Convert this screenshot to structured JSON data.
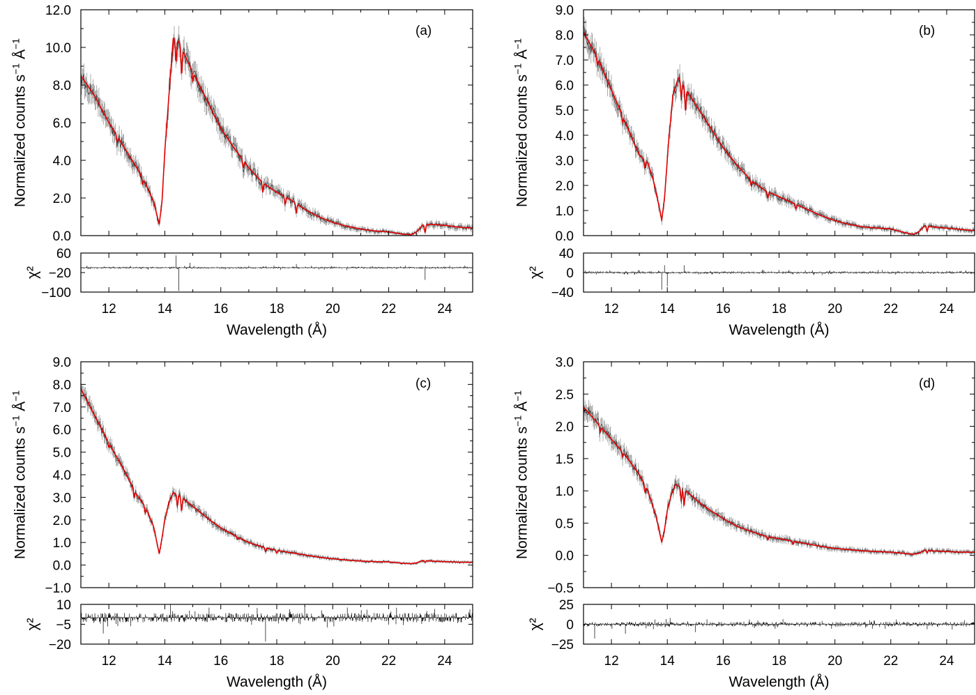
{
  "chart_data": [
    {
      "type": "line",
      "panel_label": "(a)",
      "ylabel": "Normalized counts s⁻¹ Å⁻¹",
      "ylabel_parts": {
        "main": "Normalized counts s",
        "exp1": "−1",
        "unit": "Å",
        "exp2": "−1"
      },
      "xlabel": "Wavelength (Å)",
      "xlim": [
        11,
        25
      ],
      "xticks": [
        12,
        14,
        16,
        18,
        20,
        22,
        24
      ],
      "ylim": [
        0,
        12
      ],
      "yticks": [
        "0.0",
        "2.0",
        "4.0",
        "6.0",
        "8.0",
        "10.0",
        "12.0"
      ],
      "resid_ylabel": "χ²",
      "resid_ylim": [
        -100,
        60
      ],
      "resid_yticks": [
        "60",
        "−20",
        "−100"
      ],
      "resid_ytick_values": [
        60,
        -20,
        -100
      ],
      "resid_zero": 0,
      "model": {
        "name": "model",
        "color": "#e00000",
        "x": [
          11.0,
          11.5,
          12.0,
          12.5,
          13.0,
          13.3,
          13.6,
          13.8,
          13.9,
          14.0,
          14.15,
          14.3,
          14.5,
          14.8,
          15.2,
          15.6,
          16.0,
          16.5,
          17.0,
          17.5,
          18.0,
          18.5,
          19.0,
          19.5,
          20.0,
          20.5,
          21.0,
          21.5,
          22.0,
          22.5,
          22.8,
          23.0,
          23.2,
          23.5,
          24.0,
          24.5,
          25.0
        ],
        "y": [
          8.5,
          7.4,
          6.0,
          4.8,
          3.6,
          2.8,
          1.8,
          0.6,
          1.8,
          4.5,
          7.5,
          10.5,
          10.3,
          9.3,
          8.1,
          6.9,
          5.7,
          4.6,
          3.6,
          2.8,
          2.3,
          1.9,
          1.4,
          1.0,
          0.7,
          0.5,
          0.35,
          0.25,
          0.2,
          0.08,
          0.05,
          0.2,
          0.55,
          0.6,
          0.55,
          0.45,
          0.4
        ]
      },
      "data_series": {
        "name": "data",
        "color": "#222222"
      },
      "absorption_features": [
        [
          12.3,
          0.3
        ],
        [
          13.2,
          0.35
        ],
        [
          14.4,
          1.2
        ],
        [
          14.6,
          1.4
        ],
        [
          15.0,
          0.5
        ],
        [
          16.8,
          0.4
        ],
        [
          17.5,
          0.5
        ],
        [
          18.3,
          0.4
        ],
        [
          18.7,
          0.5
        ],
        [
          23.3,
          0.4
        ]
      ],
      "residual_spikes": [
        [
          14.4,
          50
        ],
        [
          14.5,
          -95
        ],
        [
          14.9,
          20
        ],
        [
          18.7,
          15
        ],
        [
          23.3,
          -50
        ],
        [
          20.5,
          -10
        ]
      ],
      "noise_scale": 0.12,
      "resid_noise": 4,
      "seed": 11
    },
    {
      "type": "line",
      "panel_label": "(b)",
      "ylabel": "Normalized counts s⁻¹ Å⁻¹",
      "ylabel_parts": {
        "main": "Normalized counts s",
        "exp1": "−1",
        "unit": "Å",
        "exp2": "−1"
      },
      "xlabel": "Wavelength (Å)",
      "xlim": [
        11,
        25
      ],
      "xticks": [
        12,
        14,
        16,
        18,
        20,
        22,
        24
      ],
      "ylim": [
        0,
        9
      ],
      "yticks": [
        "0.0",
        "1.0",
        "2.0",
        "3.0",
        "4.0",
        "5.0",
        "6.0",
        "7.0",
        "8.0",
        "9.0"
      ],
      "resid_ylabel": "χ²",
      "resid_ylim": [
        -40,
        40
      ],
      "resid_yticks": [
        "40",
        "0",
        "−40"
      ],
      "resid_ytick_values": [
        40,
        0,
        -40
      ],
      "resid_zero": 0,
      "model": {
        "name": "model",
        "color": "#e00000",
        "x": [
          11.0,
          11.5,
          12.0,
          12.5,
          13.0,
          13.3,
          13.5,
          13.7,
          13.8,
          13.9,
          14.05,
          14.2,
          14.4,
          14.8,
          15.2,
          15.6,
          16.0,
          16.5,
          17.0,
          17.5,
          18.0,
          18.5,
          19.0,
          19.5,
          20.0,
          20.5,
          21.0,
          21.5,
          22.0,
          22.5,
          22.8,
          23.0,
          23.2,
          23.5,
          24.0,
          24.5,
          25.0
        ],
        "y": [
          8.1,
          7.1,
          5.8,
          4.5,
          3.2,
          2.9,
          2.2,
          1.2,
          0.6,
          1.5,
          3.8,
          5.6,
          6.3,
          5.6,
          4.9,
          4.2,
          3.5,
          2.8,
          2.2,
          1.8,
          1.55,
          1.3,
          1.05,
          0.8,
          0.6,
          0.45,
          0.35,
          0.3,
          0.27,
          0.12,
          0.05,
          0.15,
          0.38,
          0.35,
          0.3,
          0.25,
          0.2
        ]
      },
      "data_series": {
        "name": "data",
        "color": "#222222"
      },
      "absorption_features": [
        [
          11.5,
          0.3
        ],
        [
          12.4,
          0.25
        ],
        [
          13.2,
          0.3
        ],
        [
          14.5,
          0.6
        ],
        [
          14.65,
          0.9
        ],
        [
          17.0,
          0.2
        ],
        [
          17.6,
          0.25
        ],
        [
          18.6,
          0.2
        ],
        [
          23.3,
          0.2
        ]
      ],
      "residual_spikes": [
        [
          13.8,
          -35
        ],
        [
          13.9,
          15
        ],
        [
          14.0,
          -28
        ],
        [
          14.6,
          15
        ],
        [
          18.0,
          5
        ]
      ],
      "noise_scale": 0.09,
      "resid_noise": 2.5,
      "seed": 23
    },
    {
      "type": "line",
      "panel_label": "(c)",
      "ylabel": "Normalized counts s⁻¹ Å⁻¹",
      "ylabel_parts": {
        "main": "Normalized counts s",
        "exp1": "−1",
        "unit": "Å",
        "exp2": "−1"
      },
      "xlabel": "Wavelength (Å)",
      "xlim": [
        11,
        25
      ],
      "xticks": [
        12,
        14,
        16,
        18,
        20,
        22,
        24
      ],
      "ylim": [
        -1,
        9
      ],
      "yticks": [
        "−1.0",
        "0.0",
        "1.0",
        "2.0",
        "3.0",
        "4.0",
        "5.0",
        "6.0",
        "7.0",
        "8.0",
        "9.0"
      ],
      "resid_ylabel": "χ²",
      "resid_ylim": [
        -20,
        10
      ],
      "resid_yticks": [
        "10",
        "−5",
        "−20"
      ],
      "resid_ytick_values": [
        10,
        -5,
        -20
      ],
      "resid_zero": 0,
      "model": {
        "name": "model",
        "color": "#e00000",
        "x": [
          11.0,
          11.5,
          12.0,
          12.5,
          13.0,
          13.3,
          13.6,
          13.8,
          13.9,
          14.0,
          14.15,
          14.3,
          14.5,
          14.8,
          15.2,
          15.6,
          16.0,
          16.5,
          17.0,
          17.5,
          18.0,
          18.5,
          19.0,
          19.5,
          20.0,
          20.5,
          21.0,
          21.5,
          22.0,
          22.5,
          22.8,
          23.0,
          23.2,
          23.5,
          24.0,
          24.5,
          25.0
        ],
        "y": [
          7.8,
          6.6,
          5.4,
          4.3,
          3.1,
          2.6,
          1.7,
          0.5,
          1.2,
          2.0,
          2.8,
          3.2,
          3.1,
          2.8,
          2.4,
          2.0,
          1.65,
          1.3,
          1.0,
          0.8,
          0.65,
          0.55,
          0.45,
          0.35,
          0.28,
          0.22,
          0.18,
          0.15,
          0.14,
          0.08,
          0.06,
          0.1,
          0.2,
          0.18,
          0.15,
          0.13,
          0.12
        ]
      },
      "data_series": {
        "name": "data",
        "color": "#222222"
      },
      "absorption_features": [
        [
          12.0,
          0.2
        ],
        [
          12.9,
          0.35
        ],
        [
          13.3,
          0.3
        ],
        [
          14.45,
          0.5
        ],
        [
          14.6,
          0.6
        ],
        [
          16.6,
          0.1
        ],
        [
          17.6,
          0.15
        ],
        [
          18.0,
          0.12
        ],
        [
          23.3,
          0.08
        ]
      ],
      "residual_spikes": [
        [
          14.2,
          10
        ],
        [
          17.6,
          -18
        ],
        [
          11.8,
          -12
        ],
        [
          19.0,
          8
        ]
      ],
      "noise_scale": 0.07,
      "resid_noise": 3.5,
      "seed": 37
    },
    {
      "type": "line",
      "panel_label": "(d)",
      "ylabel": "Normalized counts s⁻¹ Å⁻¹",
      "ylabel_parts": {
        "main": "Normalized counts s",
        "exp1": "−1",
        "unit": "Å",
        "exp2": "−1"
      },
      "xlabel": "Wavelength (Å)",
      "xlim": [
        11,
        25
      ],
      "xticks": [
        12,
        14,
        16,
        18,
        20,
        22,
        24
      ],
      "ylim": [
        -0.5,
        3.0
      ],
      "yticks": [
        "−0.5",
        "0.0",
        "0.5",
        "1.0",
        "1.5",
        "2.0",
        "2.5",
        "3.0"
      ],
      "resid_ylabel": "χ²",
      "resid_ylim": [
        -25,
        25
      ],
      "resid_yticks": [
        "25",
        "0",
        "−25"
      ],
      "resid_ytick_values": [
        25,
        0,
        -25
      ],
      "resid_zero": 0,
      "model": {
        "name": "model",
        "color": "#e00000",
        "x": [
          11.0,
          11.5,
          12.0,
          12.5,
          13.0,
          13.3,
          13.6,
          13.8,
          13.9,
          14.0,
          14.15,
          14.3,
          14.5,
          14.8,
          15.2,
          15.6,
          16.0,
          16.5,
          17.0,
          17.5,
          18.0,
          18.5,
          19.0,
          19.5,
          20.0,
          20.5,
          21.0,
          21.5,
          22.0,
          22.5,
          22.8,
          23.0,
          23.2,
          23.5,
          24.0,
          24.5,
          25.0
        ],
        "y": [
          2.3,
          2.05,
          1.8,
          1.55,
          1.25,
          1.0,
          0.6,
          0.2,
          0.4,
          0.7,
          0.95,
          1.1,
          1.05,
          0.95,
          0.8,
          0.68,
          0.57,
          0.45,
          0.37,
          0.3,
          0.26,
          0.22,
          0.18,
          0.14,
          0.11,
          0.09,
          0.07,
          0.06,
          0.05,
          0.03,
          0.02,
          0.03,
          0.08,
          0.07,
          0.06,
          0.05,
          0.05
        ]
      },
      "data_series": {
        "name": "data",
        "color": "#222222"
      },
      "absorption_features": [
        [
          11.6,
          0.08
        ],
        [
          12.4,
          0.07
        ],
        [
          13.2,
          0.1
        ],
        [
          14.5,
          0.2
        ],
        [
          14.6,
          0.25
        ],
        [
          17.6,
          0.05
        ],
        [
          18.5,
          0.05
        ],
        [
          23.3,
          0.04
        ]
      ],
      "residual_spikes": [
        [
          11.4,
          -18
        ],
        [
          12.5,
          -12
        ],
        [
          15.0,
          -10
        ],
        [
          14.1,
          8
        ],
        [
          22.2,
          6
        ]
      ],
      "noise_scale": 0.05,
      "resid_noise": 3,
      "seed": 51
    }
  ]
}
